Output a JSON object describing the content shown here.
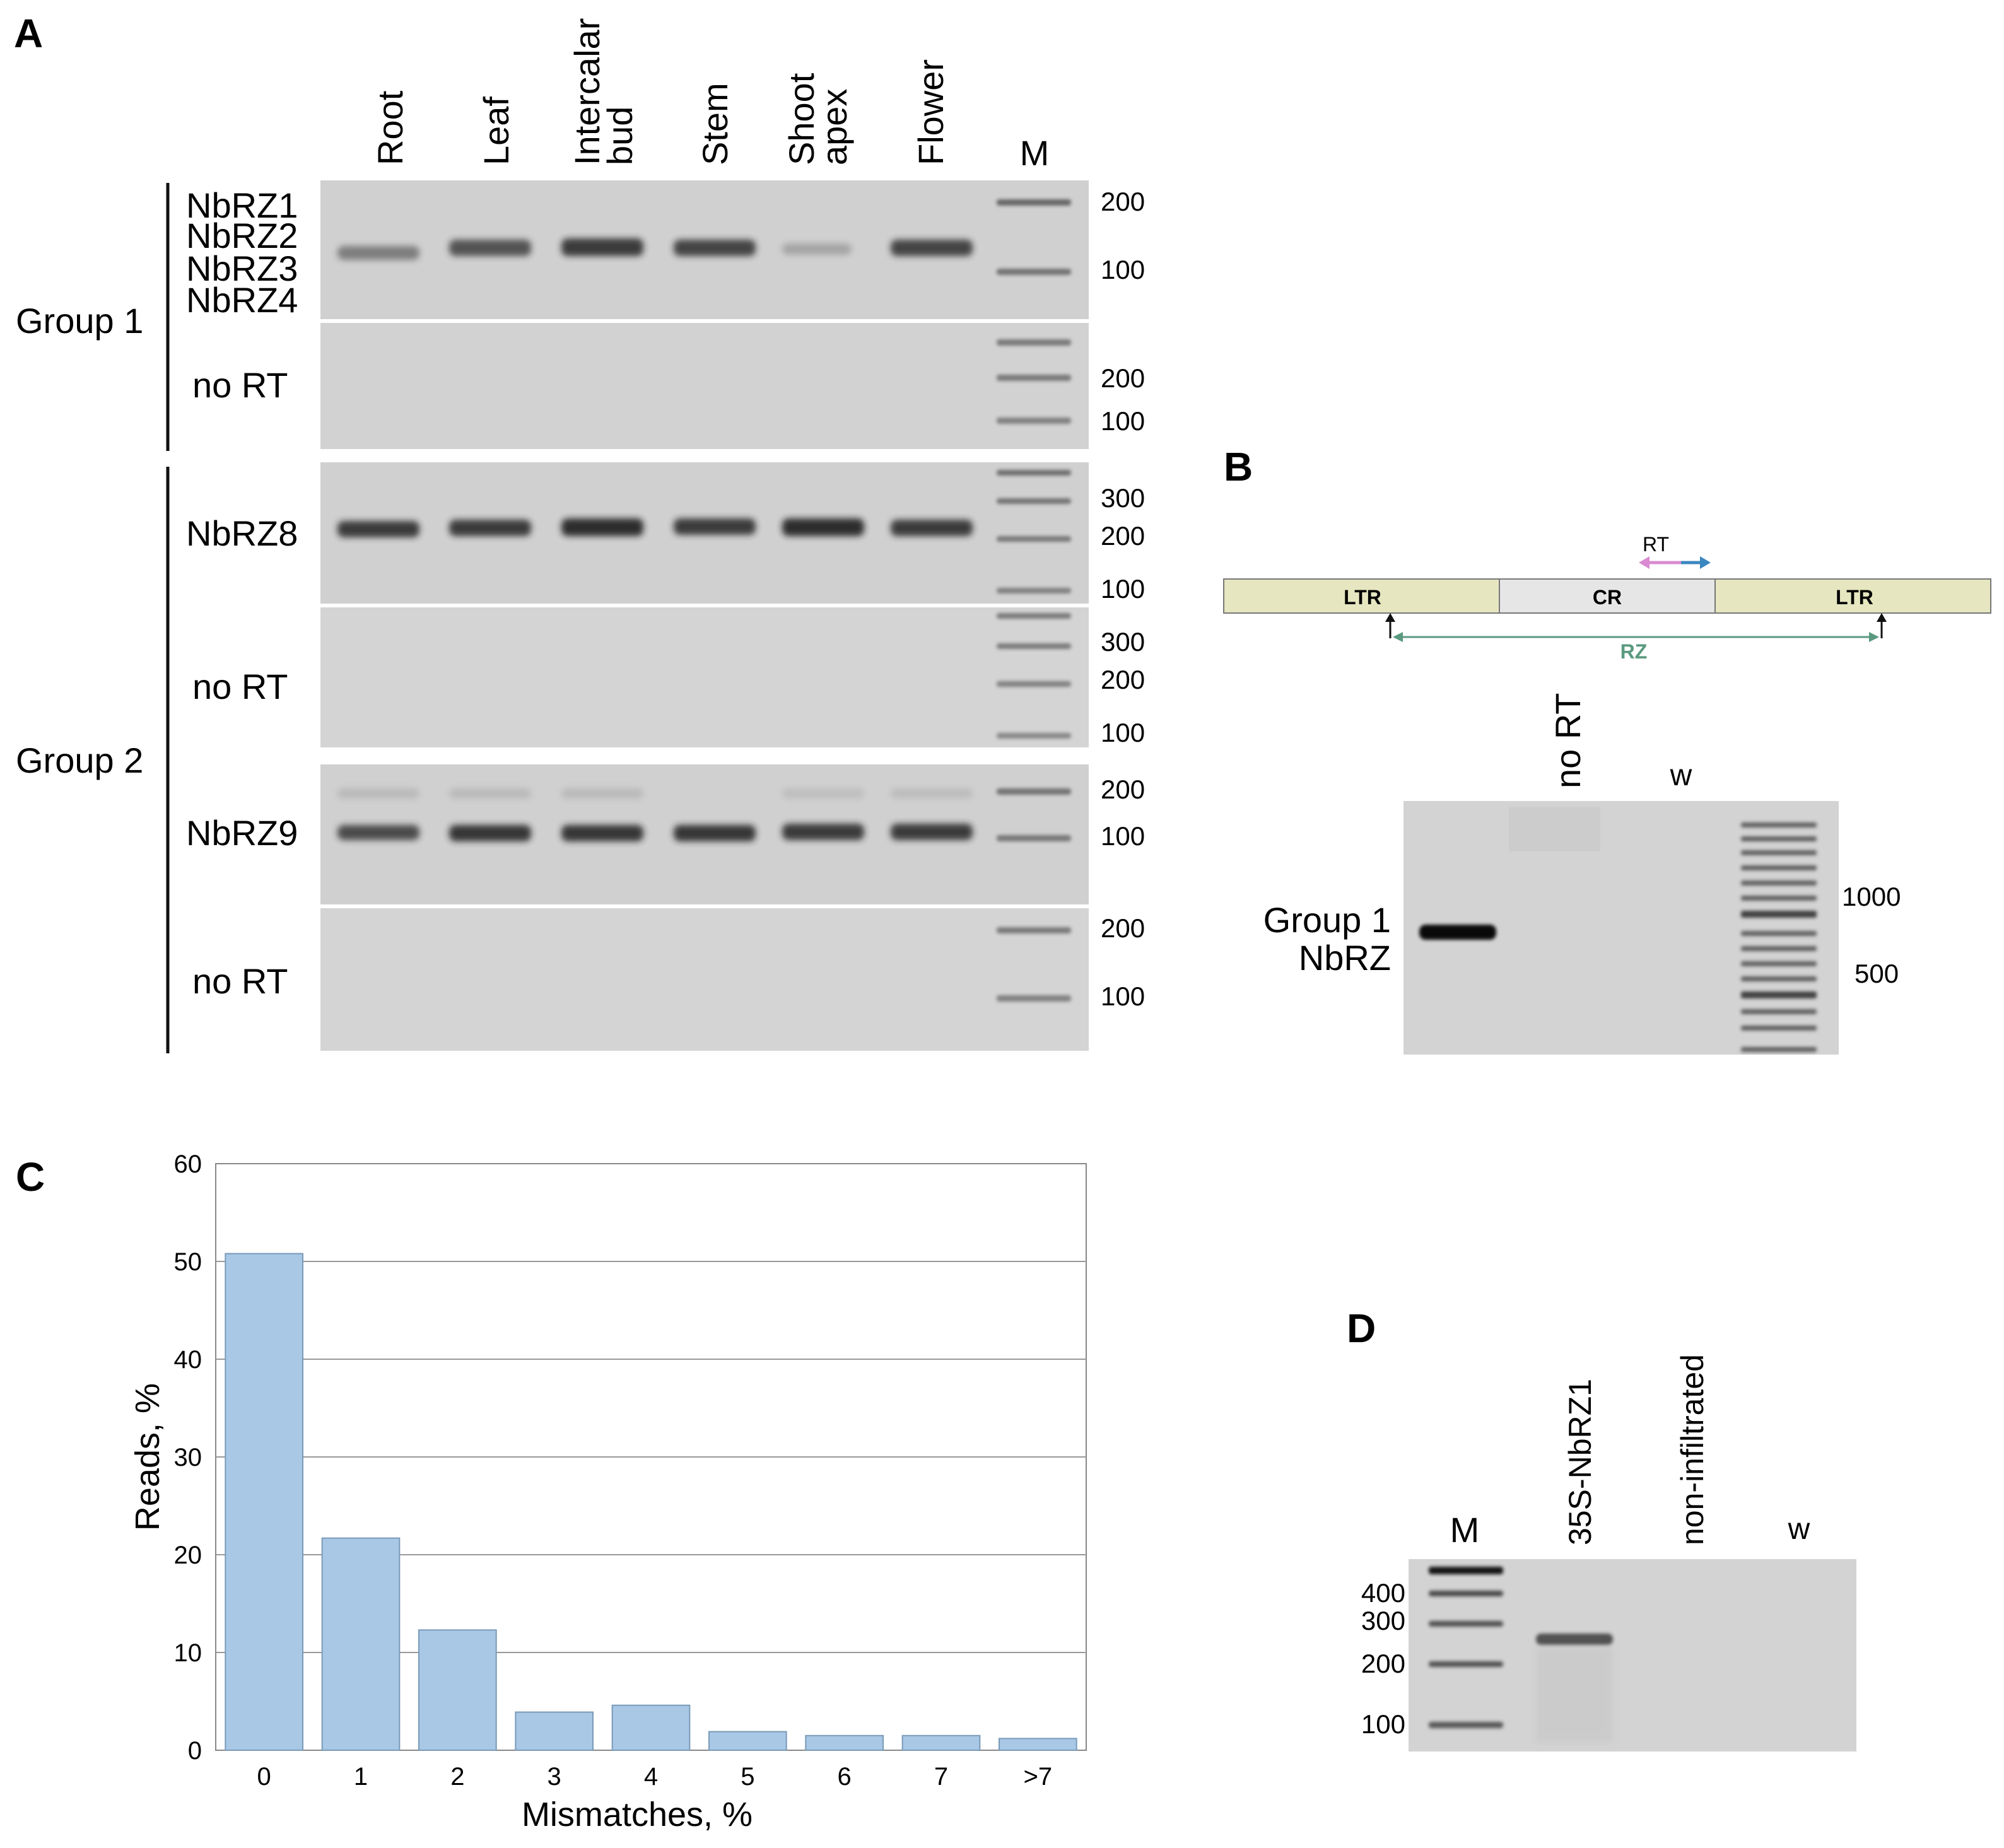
{
  "panel_letters": {
    "a": "A",
    "b": "B",
    "c": "C",
    "d": "D"
  },
  "panel_a": {
    "lanes": [
      {
        "lines": [
          "Root"
        ]
      },
      {
        "lines": [
          "Leaf"
        ]
      },
      {
        "lines": [
          "Intercalar",
          "bud"
        ]
      },
      {
        "lines": [
          "Stem"
        ]
      },
      {
        "lines": [
          "Shoot",
          "apex"
        ]
      },
      {
        "lines": [
          "Flower"
        ]
      }
    ],
    "marker_label": "M",
    "group1": {
      "label": "Group 1",
      "genes": [
        "NbRZ1",
        "NbRZ2",
        "NbRZ3",
        "NbRZ4"
      ]
    },
    "group2": {
      "label": "Group 2"
    },
    "gel_labels": {
      "nbrz8": "NbRZ8",
      "nbrz9": "NbRZ9",
      "no_rt": "no RT"
    },
    "sizes": {
      "g1": [
        "200",
        "100"
      ],
      "g1_nort": [
        "200",
        "100"
      ],
      "g8": [
        "300",
        "200",
        "100"
      ],
      "g8_nort": [
        "300",
        "200",
        "100"
      ],
      "g9": [
        "200",
        "100"
      ],
      "g9_nort": [
        "200",
        "100"
      ]
    }
  },
  "panel_b": {
    "diagram": {
      "ltr": "LTR",
      "cr": "CR",
      "rt": "RT",
      "rz": "RZ"
    },
    "lanes": [
      "no RT",
      "w"
    ],
    "band_label": [
      "Group 1",
      "NbRZ"
    ],
    "sizes": [
      "1000",
      "500"
    ]
  },
  "panel_c": {
    "chart_data": {
      "type": "bar",
      "categories": [
        "0",
        "1",
        "2",
        "3",
        "4",
        "5",
        "6",
        "7",
        ">7"
      ],
      "values": [
        50.8,
        21.7,
        12.3,
        3.9,
        4.6,
        1.9,
        1.5,
        1.5,
        1.2
      ],
      "xlabel": "Mismatches, %",
      "ylabel": "Reads, %",
      "ylim": [
        0,
        60
      ],
      "yticks": [
        "0",
        "10",
        "20",
        "30",
        "40",
        "50",
        "60"
      ],
      "grid": true,
      "bar_color": "#a8c8e6"
    }
  },
  "panel_d": {
    "lanes": [
      "M",
      "35S-NbRZ1",
      "non-infiltrated",
      "w"
    ],
    "sizes": [
      "400",
      "300",
      "200",
      "100"
    ]
  }
}
